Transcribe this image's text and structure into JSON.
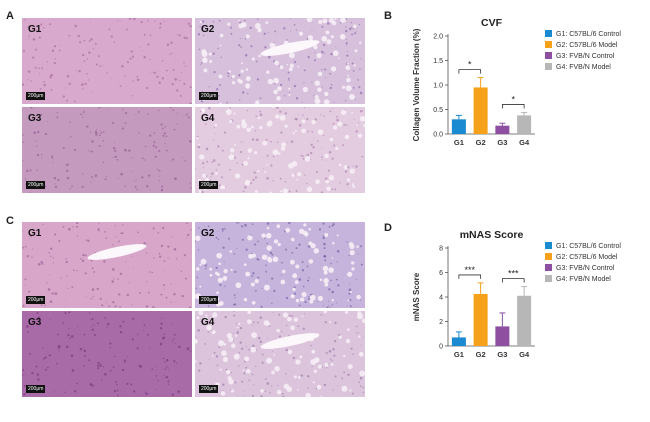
{
  "panels": {
    "a": {
      "letter": "A",
      "tiles": [
        "G1",
        "G2",
        "G3",
        "G4"
      ],
      "scale_label": "200μm",
      "tint": "pink"
    },
    "b": {
      "letter": "B"
    },
    "c": {
      "letter": "C",
      "tiles": [
        "G1",
        "G2",
        "G3",
        "G4"
      ],
      "scale_label": "200μm",
      "tint": "pink"
    },
    "d": {
      "letter": "D"
    }
  },
  "colors": {
    "g1": "#1a8bd0",
    "g2": "#f5a11a",
    "g3": "#8e4fa0",
    "g4": "#b7b7b7"
  },
  "chart_data": [
    {
      "type": "bar",
      "title": "CVF",
      "ylabel": "Collagen Volume Fraction (%)",
      "xlabel": "",
      "categories": [
        "G1",
        "G2",
        "G3",
        "G4"
      ],
      "values": [
        0.3,
        0.95,
        0.17,
        0.38
      ],
      "errors": [
        0.08,
        0.2,
        0.05,
        0.06
      ],
      "ylim": [
        0,
        2.0
      ],
      "yticks": [
        "0.0",
        "0.5",
        "1.0",
        "1.5",
        "2.0"
      ],
      "legend": [
        "G1: C57BL/6 Control",
        "G2: C57BL/6 Model",
        "G3: FVB/N Control",
        "G4: FVB/N Model"
      ],
      "legend_position": "right",
      "annotations": [
        {
          "from": "G1",
          "to": "G2",
          "label": "*"
        },
        {
          "from": "G3",
          "to": "G4",
          "label": "*"
        }
      ]
    },
    {
      "type": "bar",
      "title": "mNAS Score",
      "ylabel": "mNAS Score",
      "xlabel": "",
      "categories": [
        "G1",
        "G2",
        "G3",
        "G4"
      ],
      "values": [
        0.7,
        4.25,
        1.6,
        4.1
      ],
      "errors": [
        0.45,
        0.9,
        1.1,
        0.75
      ],
      "ylim": [
        0,
        8
      ],
      "yticks": [
        "0",
        "2",
        "4",
        "6",
        "8"
      ],
      "legend": [
        "G1: C57BL/6 Control",
        "G2: C57BL/6 Model",
        "G3: FVB/N Control",
        "G4: FVB/N Model"
      ],
      "legend_position": "right",
      "annotations": [
        {
          "from": "G1",
          "to": "G2",
          "label": "***"
        },
        {
          "from": "G3",
          "to": "G4",
          "label": "***"
        }
      ]
    }
  ]
}
